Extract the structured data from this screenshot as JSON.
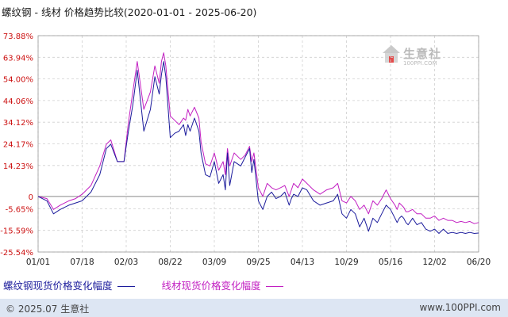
{
  "header": {
    "title": "螺纹钢 - 线材 价格趋势比较(2020-01-01 - 2025-06-20)"
  },
  "watermark": {
    "name": "生意社",
    "url": "100PPI.COM"
  },
  "footer": {
    "copyright": "© 2025.07 生意社",
    "site": "www.100PPI.com"
  },
  "colors": {
    "series_a": "#1c1c9c",
    "series_b": "#c21fc2",
    "grid": "#cfcfcf",
    "zero_line": "#888888",
    "footer_bg": "#dde6f3"
  },
  "chart_data": {
    "type": "line",
    "title": "螺纹钢 - 线材 价格趋势比较(2020-01-01 - 2025-06-20)",
    "ylim": [
      -25.54,
      73.88
    ],
    "y_ticks": [
      "73.88%",
      "63.94%",
      "54.00%",
      "44.06%",
      "34.12%",
      "24.17%",
      "14.23%",
      "0",
      "-5.65%",
      "-15.59%",
      "-25.54%"
    ],
    "x_ticks": [
      "01/01",
      "07/18",
      "02/03",
      "08/22",
      "03/09",
      "09/25",
      "04/13",
      "10/29",
      "05/16",
      "12/02",
      "06/20"
    ],
    "grid": true,
    "legend_position": "bottom-left",
    "series": [
      {
        "name": "螺纹钢现货价格变化幅度",
        "x": [
          0,
          0.02,
          0.035,
          0.05,
          0.07,
          0.085,
          0.1,
          0.12,
          0.14,
          0.155,
          0.165,
          0.18,
          0.195,
          0.205,
          0.215,
          0.225,
          0.24,
          0.255,
          0.265,
          0.275,
          0.28,
          0.285,
          0.29,
          0.3,
          0.31,
          0.32,
          0.33,
          0.335,
          0.34,
          0.345,
          0.355,
          0.365,
          0.37,
          0.38,
          0.39,
          0.4,
          0.41,
          0.42,
          0.425,
          0.43,
          0.435,
          0.445,
          0.46,
          0.47,
          0.48,
          0.485,
          0.49,
          0.5,
          0.51,
          0.52,
          0.53,
          0.54,
          0.55,
          0.56,
          0.57,
          0.575,
          0.58,
          0.59,
          0.6,
          0.61,
          0.625,
          0.64,
          0.655,
          0.67,
          0.68,
          0.69,
          0.7,
          0.71,
          0.72,
          0.73,
          0.74,
          0.75,
          0.76,
          0.77,
          0.78,
          0.79,
          0.8,
          0.81,
          0.815,
          0.82,
          0.825,
          0.83,
          0.835,
          0.84,
          0.85,
          0.86,
          0.87,
          0.88,
          0.89,
          0.9,
          0.91,
          0.92,
          0.93,
          0.94,
          0.95,
          0.96,
          0.97,
          0.98,
          0.99,
          1.0
        ],
        "y": [
          0,
          -2,
          -8,
          -6,
          -4,
          -3,
          -2,
          2,
          10,
          22,
          24,
          16,
          16,
          30,
          42,
          58,
          30,
          40,
          55,
          47,
          56,
          62,
          55,
          27,
          29,
          30,
          33,
          28,
          33,
          30,
          36,
          30,
          20,
          10,
          9,
          16,
          6,
          10,
          3,
          20,
          5,
          16,
          14,
          18,
          22,
          11,
          17,
          -2,
          -6,
          0,
          2,
          -1,
          0,
          2,
          -4,
          -1,
          1,
          0,
          4,
          3,
          -2,
          -4,
          -3,
          -2,
          1,
          -8,
          -10,
          -6,
          -8,
          -14,
          -10,
          -16,
          -10,
          -12,
          -8,
          -4,
          -6,
          -10,
          -12,
          -10,
          -9,
          -10,
          -12,
          -13,
          -10,
          -13,
          -12,
          -15,
          -16,
          -15,
          -17,
          -15,
          -17,
          -16.5,
          -17,
          -16.5,
          -17,
          -16.5,
          -17,
          -16.8
        ]
      },
      {
        "name": "线材现货价格变化幅度",
        "x": [
          0,
          0.02,
          0.035,
          0.05,
          0.07,
          0.085,
          0.1,
          0.12,
          0.14,
          0.155,
          0.165,
          0.18,
          0.195,
          0.205,
          0.215,
          0.225,
          0.24,
          0.255,
          0.265,
          0.275,
          0.28,
          0.285,
          0.29,
          0.3,
          0.31,
          0.32,
          0.33,
          0.335,
          0.34,
          0.345,
          0.355,
          0.365,
          0.37,
          0.38,
          0.39,
          0.4,
          0.41,
          0.42,
          0.425,
          0.43,
          0.435,
          0.445,
          0.46,
          0.47,
          0.48,
          0.485,
          0.49,
          0.5,
          0.51,
          0.52,
          0.53,
          0.54,
          0.55,
          0.56,
          0.57,
          0.575,
          0.58,
          0.59,
          0.6,
          0.61,
          0.625,
          0.64,
          0.655,
          0.67,
          0.68,
          0.69,
          0.7,
          0.71,
          0.72,
          0.73,
          0.74,
          0.75,
          0.76,
          0.77,
          0.78,
          0.79,
          0.8,
          0.81,
          0.815,
          0.82,
          0.825,
          0.83,
          0.835,
          0.84,
          0.85,
          0.86,
          0.87,
          0.88,
          0.89,
          0.9,
          0.91,
          0.92,
          0.93,
          0.94,
          0.95,
          0.96,
          0.97,
          0.98,
          0.99,
          1.0
        ],
        "y": [
          0,
          -1,
          -6,
          -4,
          -2,
          -1,
          1,
          5,
          14,
          24,
          26,
          16,
          16,
          34,
          48,
          62,
          40,
          48,
          60,
          52,
          62,
          66,
          60,
          37,
          35,
          33,
          36,
          35,
          40,
          37,
          41,
          36,
          25,
          15,
          14,
          20,
          12,
          16,
          10,
          22,
          14,
          20,
          17,
          19,
          23,
          16,
          20,
          4,
          0,
          6,
          4,
          3,
          4,
          5,
          0,
          3,
          6,
          4,
          8,
          6,
          3,
          1,
          3,
          4,
          6,
          -2,
          -3,
          0,
          -2,
          -6,
          -4,
          -8,
          -2,
          -4,
          -1,
          3,
          -1,
          -4,
          -6,
          -3,
          -4,
          -5,
          -7,
          -7,
          -6,
          -8,
          -8,
          -10,
          -10,
          -9,
          -11,
          -10,
          -11,
          -11,
          -12,
          -11.5,
          -12,
          -11.5,
          -12.5,
          -12
        ]
      }
    ]
  }
}
